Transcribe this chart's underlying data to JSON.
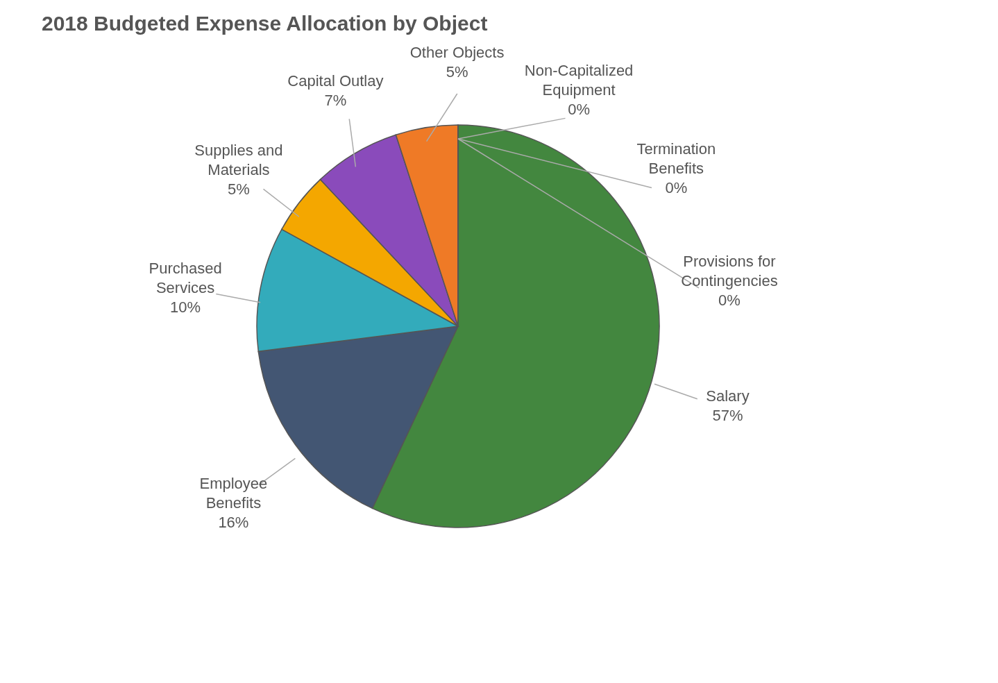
{
  "chart_data": {
    "type": "pie",
    "title": "2018 Budgeted Expense Allocation by Object",
    "categories": [
      "Salary",
      "Employee  Benefits",
      "Purchased Services",
      "Supplies and Materials",
      "Capital Outlay",
      "Other Objects",
      "Non-Capitalized Equipment",
      "Termination  Benefits",
      "Provisions for Contingencies"
    ],
    "values": [
      57,
      16,
      10,
      5,
      7,
      5,
      0,
      0,
      0
    ],
    "value_labels": [
      "57%",
      "16%",
      "10%",
      "5%",
      "7%",
      "5%",
      "0%",
      "0%",
      "0%"
    ],
    "colors": [
      "#43873f",
      "#435673",
      "#33abbb",
      "#f4a700",
      "#8a4bbb",
      "#ef7a26",
      "#7a3f8f",
      "#a03050",
      "#c0143c"
    ]
  }
}
